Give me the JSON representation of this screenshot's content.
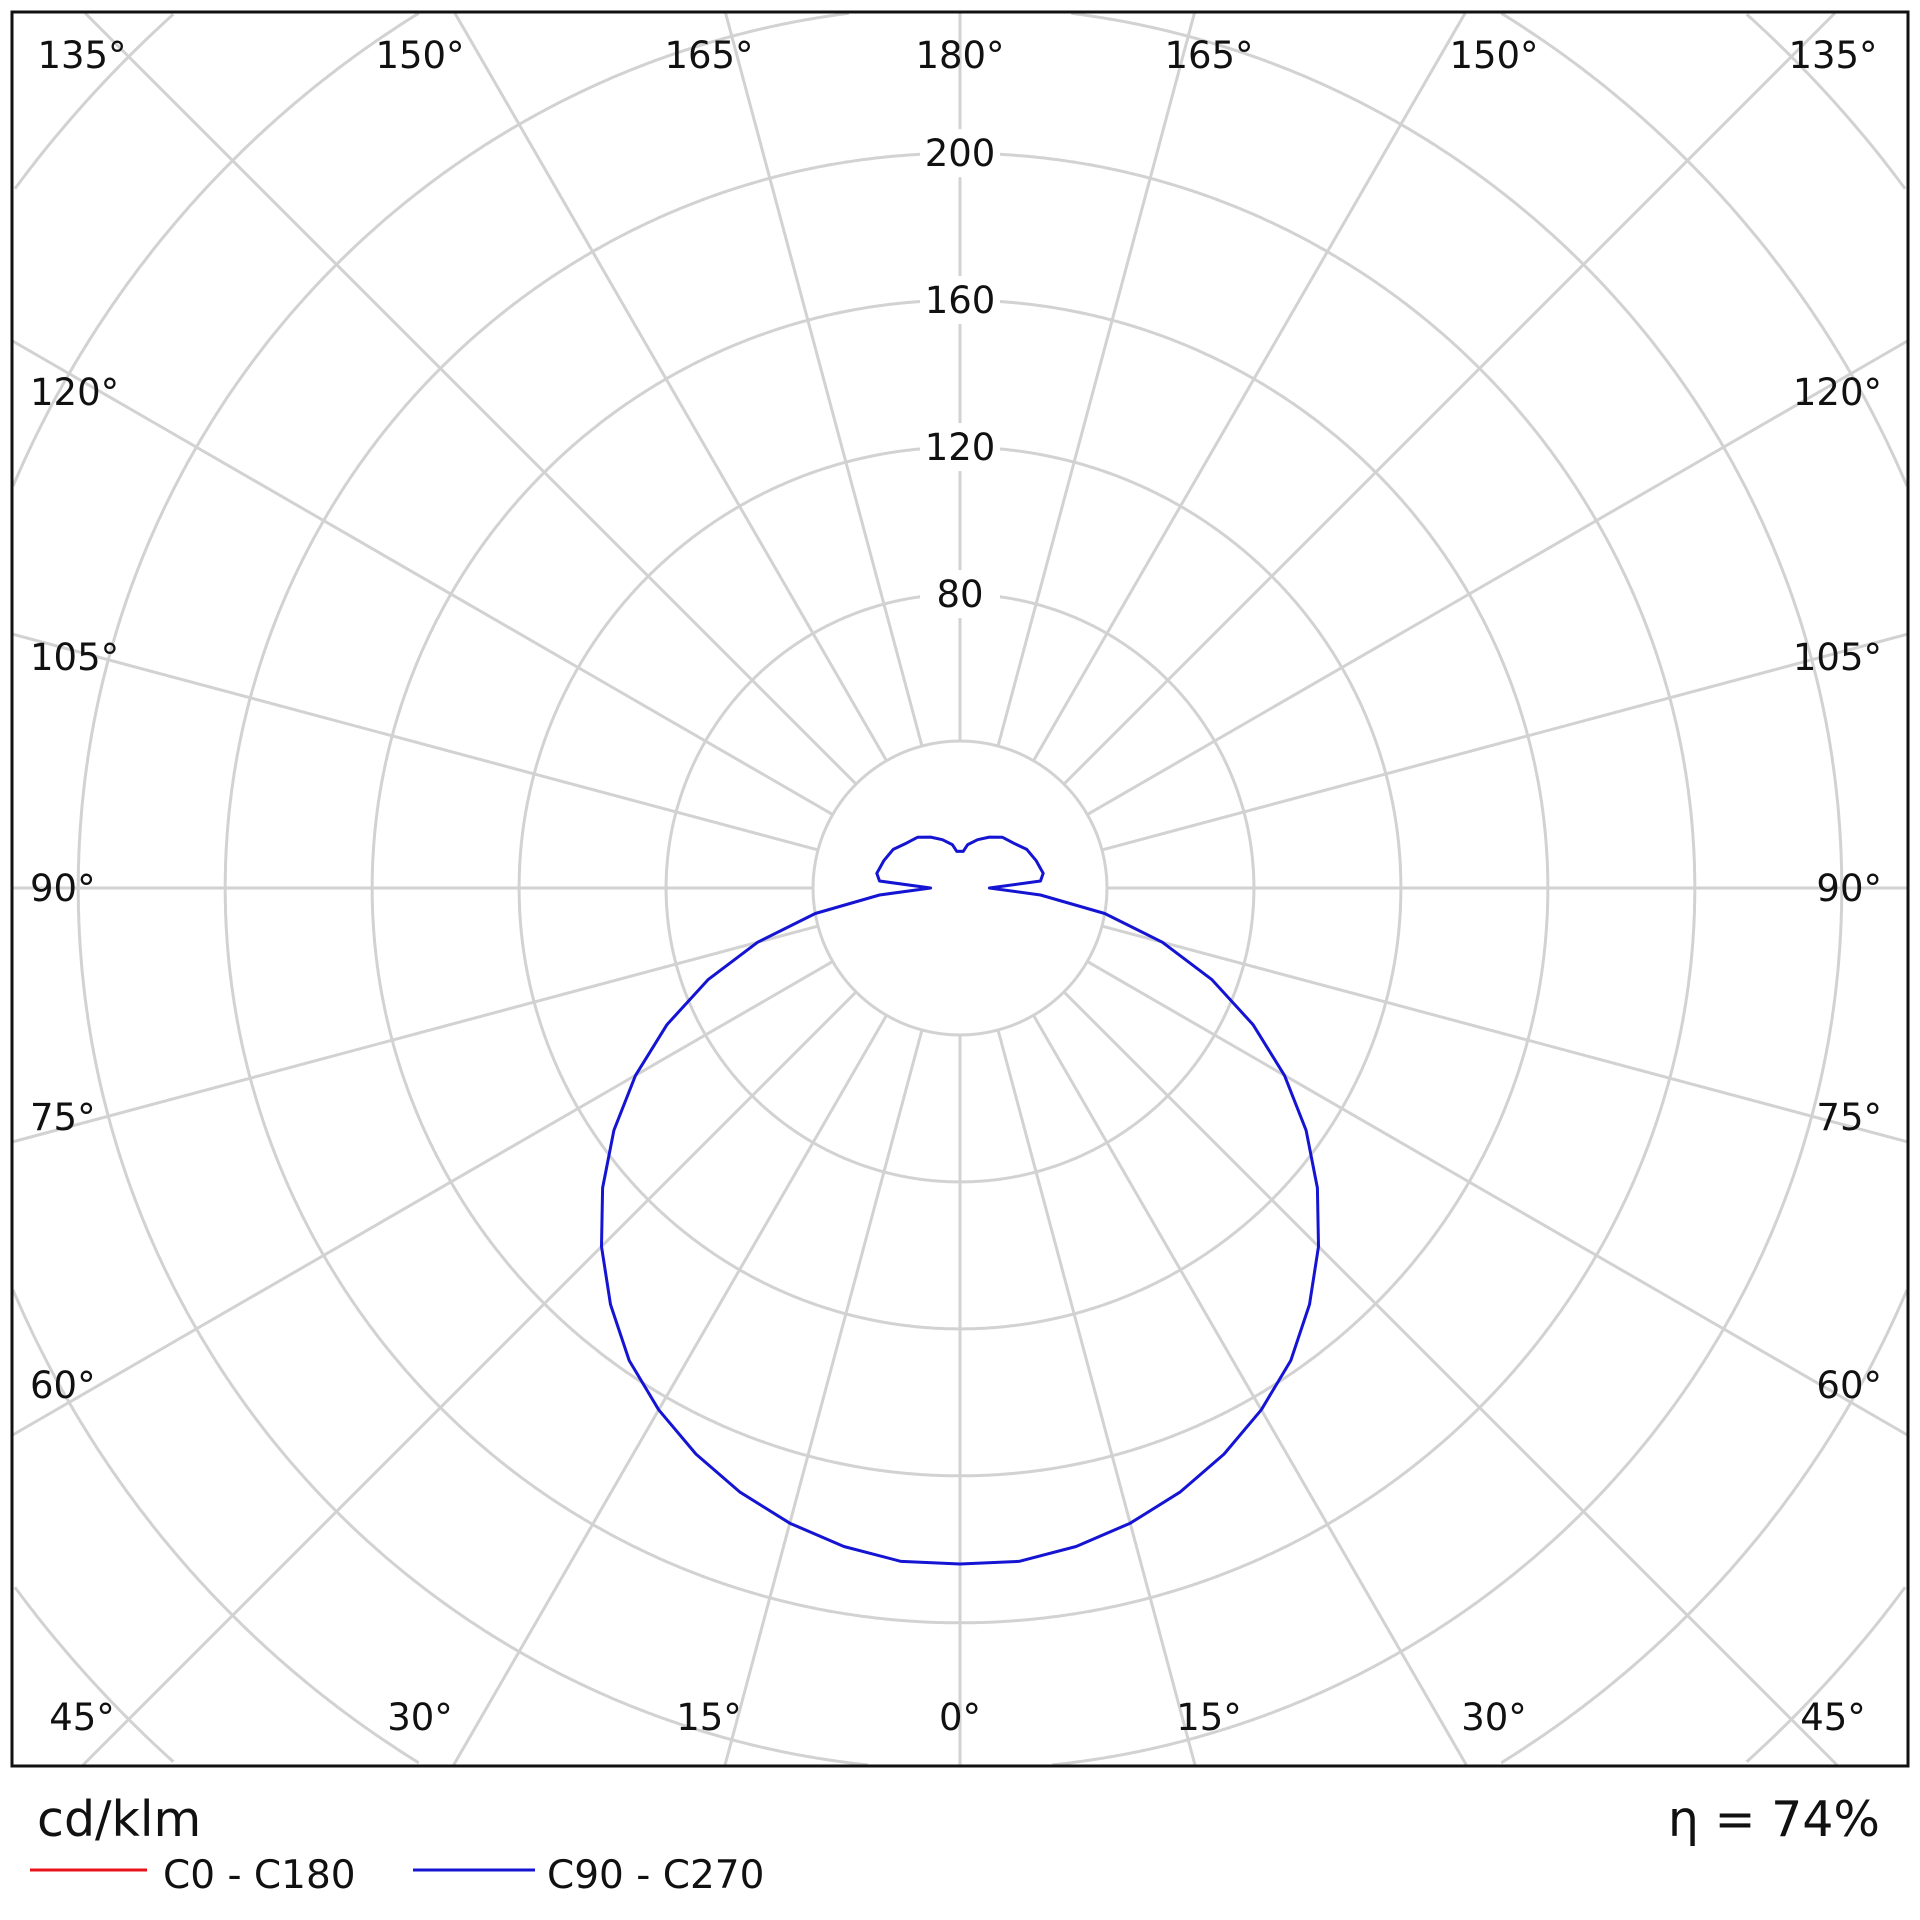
{
  "chart_data": {
    "type": "polar",
    "unit_label": "cd/klm",
    "efficiency_label": "η = 74%",
    "radial_ticks": [
      80,
      120,
      160,
      200
    ],
    "radial_grid_step": 40,
    "angle_step_deg": 15,
    "angle_labels": {
      "top": [
        "135°",
        "150°",
        "165°",
        "180°",
        "165°",
        "150°",
        "135°"
      ],
      "left": [
        "120°",
        "105°",
        "90°",
        "75°",
        "60°"
      ],
      "right": [
        "120°",
        "105°",
        "90°",
        "75°",
        "60°"
      ],
      "bottom": [
        "45°",
        "30°",
        "15°",
        "0°",
        "15°",
        "30°",
        "45°"
      ]
    },
    "grid": true,
    "legend_placement": "bottom-left",
    "series": [
      {
        "name": "C0 - C180",
        "color": "#e8141b",
        "gamma": [],
        "values": []
      },
      {
        "name": "C90 - C270",
        "color": "#1414d2",
        "gamma": [
          0,
          5,
          10,
          15,
          20,
          25,
          30,
          35,
          40,
          45,
          50,
          55,
          60,
          65,
          70,
          75,
          80,
          85,
          90,
          95,
          100,
          110,
          120,
          130,
          140,
          150,
          160,
          170,
          175,
          180
        ],
        "values": [
          184,
          184,
          182,
          179,
          175,
          170,
          164,
          157,
          148,
          138,
          127,
          115,
          102,
          88,
          73,
          57,
          40,
          22,
          8,
          22,
          23,
          22,
          21,
          19,
          18,
          16,
          14,
          12,
          10,
          10
        ]
      }
    ]
  }
}
